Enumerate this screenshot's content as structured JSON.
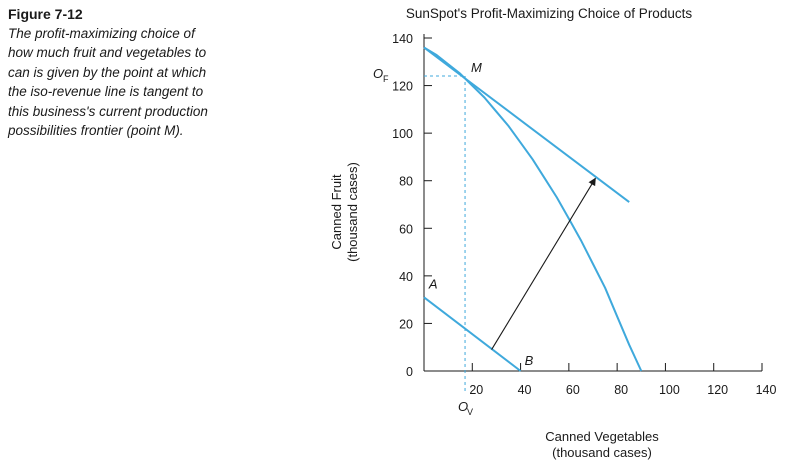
{
  "caption": {
    "figure": "Figure 7-12",
    "text": "The profit-maximizing choice of how much fruit and vegetables to can is given by the point at which the iso-revenue line is tangent to this business's current production possibilities frontier (point M)."
  },
  "colors": {
    "curve": "#3fa9dc",
    "axis": "#1a1a1a",
    "arrow": "#1a1a1a"
  },
  "chart_data": {
    "type": "line",
    "title": "SunSpot's Profit-Maximizing Choice of Products",
    "xlabel": [
      "Canned Vegetables",
      "(thousand cases)"
    ],
    "ylabel": [
      "Canned Fruit",
      "(thousand cases)"
    ],
    "xlim": [
      0,
      140
    ],
    "ylim": [
      0,
      140
    ],
    "xticks": [
      20,
      40,
      60,
      80,
      100,
      120,
      140
    ],
    "yticks": [
      0,
      20,
      40,
      60,
      80,
      100,
      120,
      140
    ],
    "grid": false,
    "series": [
      {
        "values": [
          [
            0,
            136
          ],
          [
            5,
            133
          ],
          [
            10,
            129
          ],
          [
            15,
            125
          ],
          [
            20,
            120
          ],
          [
            25,
            115
          ],
          [
            30,
            109
          ],
          [
            35,
            103
          ],
          [
            40,
            96
          ],
          [
            45,
            89
          ],
          [
            50,
            81
          ],
          [
            55,
            73
          ],
          [
            60,
            64
          ],
          [
            65,
            55
          ],
          [
            70,
            45
          ],
          [
            75,
            35
          ],
          [
            80,
            23
          ],
          [
            85,
            11
          ],
          [
            90,
            0
          ]
        ]
      },
      {
        "values": [
          [
            0,
            136
          ],
          [
            85,
            71
          ]
        ]
      },
      {
        "values": [
          [
            0,
            31
          ],
          [
            40,
            0
          ]
        ]
      }
    ],
    "arrow": {
      "from": [
        28,
        9
      ],
      "to": [
        71,
        81
      ]
    },
    "tangency": {
      "x": 17,
      "y": 124
    },
    "point_labels": {
      "M": "M",
      "A": "A",
      "B": "B",
      "OF": "O",
      "OF_sub": "F",
      "OV": "O",
      "OV_sub": "V"
    }
  }
}
